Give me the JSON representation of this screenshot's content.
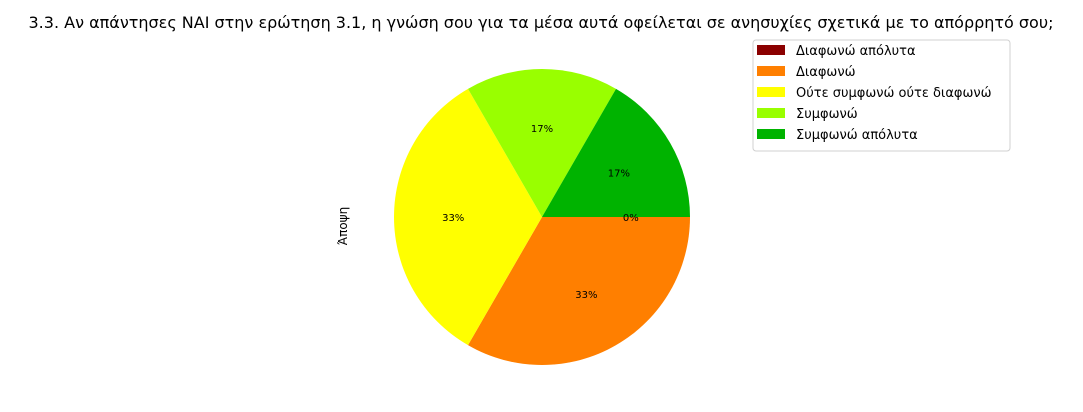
{
  "chart_data": {
    "type": "pie",
    "title": "3.3. Αν απάντησες ΝΑΙ στην ερώτηση 3.1, η γνώση σου για τα μέσα αυτά οφείλεται σε ανησυχίες σχετικά με το απόρρητό σου;",
    "ylabel": "Άποψη",
    "categories": [
      "Διαφωνώ απόλυτα",
      "Διαφωνώ",
      "Ούτε συμφωνώ ούτε διαφωνώ",
      "Συμφωνώ",
      "Συμφωνώ απόλυτα"
    ],
    "values": [
      0,
      2,
      2,
      1,
      1
    ],
    "percent_labels": [
      "0%",
      "33%",
      "33%",
      "17%",
      "17%"
    ],
    "colors": [
      "#8b0000",
      "#ff7f00",
      "#ffff00",
      "#99ff00",
      "#00b300"
    ],
    "start_angle": 0,
    "direction": "clockwise",
    "legend_position": "upper-right"
  }
}
